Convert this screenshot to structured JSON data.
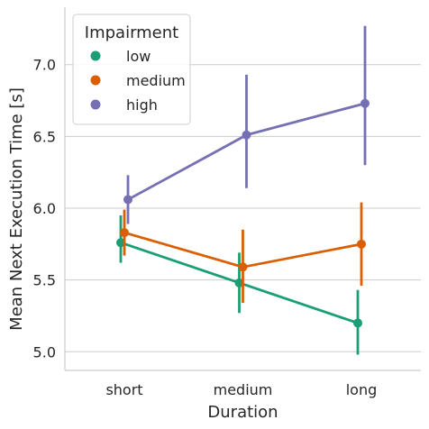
{
  "chart_data": {
    "type": "line",
    "subtype": "pointplot-with-error-bars",
    "xlabel": "Duration",
    "ylabel": "Mean Next Execution Time [s]",
    "categories": [
      "short",
      "medium",
      "long"
    ],
    "ylim": [
      4.87,
      7.4
    ],
    "yticks": [
      "5.0",
      "5.5",
      "6.0",
      "6.5",
      "7.0"
    ],
    "grid": "horizontal",
    "legend": {
      "title": "Impairment",
      "placement": "top-left"
    },
    "series": [
      {
        "name": "low",
        "color": "#1b9e77",
        "values": [
          5.76,
          5.48,
          5.2
        ],
        "ci_low": [
          5.62,
          5.27,
          4.98
        ],
        "ci_high": [
          5.95,
          5.69,
          5.43
        ]
      },
      {
        "name": "medium",
        "color": "#d95f02",
        "values": [
          5.83,
          5.59,
          5.75
        ],
        "ci_low": [
          5.67,
          5.34,
          5.46
        ],
        "ci_high": [
          5.99,
          5.85,
          6.04
        ]
      },
      {
        "name": "high",
        "color": "#7570b3",
        "values": [
          6.06,
          6.51,
          6.73
        ],
        "ci_low": [
          5.89,
          6.14,
          6.3
        ],
        "ci_high": [
          6.23,
          6.93,
          7.27
        ]
      }
    ]
  }
}
